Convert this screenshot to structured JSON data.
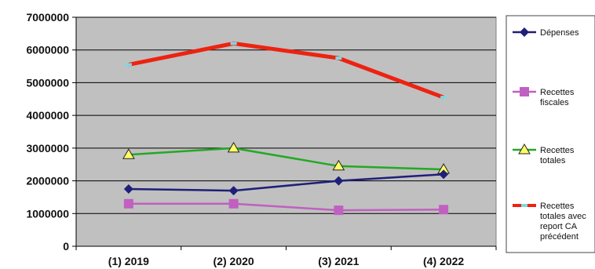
{
  "chart_data": {
    "type": "line",
    "categories": [
      "(1) 2019",
      "(2) 2020",
      "(3) 2021",
      "(4) 2022"
    ],
    "ylim": [
      0,
      7000000
    ],
    "yticks": [
      0,
      1000000,
      2000000,
      3000000,
      4000000,
      5000000,
      6000000,
      7000000
    ],
    "ytick_labels": [
      "0",
      "1000000",
      "2000000",
      "3000000",
      "4000000",
      "5000000",
      "6000000",
      "7000000"
    ],
    "grid": true,
    "legend_position": "right",
    "plot_background": "#c0c0c0",
    "series": [
      {
        "name": "Dépenses",
        "legend_lines": [
          "Dépenses"
        ],
        "color": "#1f1f7a",
        "marker": "diamond",
        "values": [
          1750000,
          1700000,
          2000000,
          2200000
        ]
      },
      {
        "name": "Recettes fiscales",
        "legend_lines": [
          "Recettes",
          "fiscales"
        ],
        "color": "#c060c0",
        "marker": "square",
        "values": [
          1300000,
          1300000,
          1100000,
          1120000
        ]
      },
      {
        "name": "Recettes totales",
        "legend_lines": [
          "Recettes",
          "totales"
        ],
        "color": "#22aa22",
        "marker": "triangle",
        "values": [
          2800000,
          3000000,
          2450000,
          2350000
        ]
      },
      {
        "name": "Recettes totales avec report CA précédent",
        "legend_lines": [
          "Recettes",
          "totales avec",
          "report CA",
          "précédent"
        ],
        "color": "#ee2211",
        "marker": "dash",
        "values": [
          5550000,
          6200000,
          5750000,
          4550000
        ]
      }
    ]
  }
}
